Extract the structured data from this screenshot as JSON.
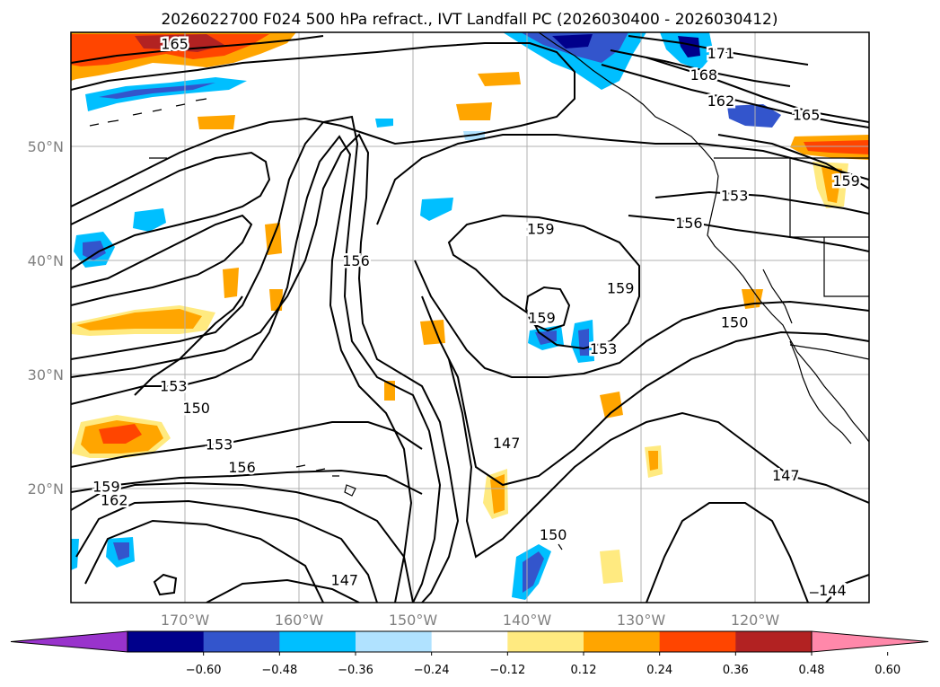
{
  "title": "2026022700 F024 500 hPa refract., IVT Landfall PC (2026030400 - 2026030412)",
  "map": {
    "lon_range": [
      -180,
      -110
    ],
    "lat_range": [
      10,
      60
    ],
    "lat_labels": [
      "50°N",
      "40°N",
      "30°N",
      "20°N"
    ],
    "lon_labels": [
      "170°W",
      "160°W",
      "150°W",
      "140°W",
      "130°W",
      "120°W"
    ],
    "gridlines": true
  },
  "contour_labels": [
    {
      "text": "165",
      "lon": -170.9,
      "lat": 59.0
    },
    {
      "text": "171",
      "lon": -123.0,
      "lat": 58.2
    },
    {
      "text": "168",
      "lon": -124.5,
      "lat": 56.3
    },
    {
      "text": "162",
      "lon": -123.0,
      "lat": 54.0
    },
    {
      "text": "165",
      "lon": -115.5,
      "lat": 52.8
    },
    {
      "text": "159",
      "lon": -112.0,
      "lat": 47.0
    },
    {
      "text": "153",
      "lon": -121.8,
      "lat": 45.7
    },
    {
      "text": "156",
      "lon": -125.8,
      "lat": 43.3
    },
    {
      "text": "159",
      "lon": -138.8,
      "lat": 42.8
    },
    {
      "text": "156",
      "lon": -155.0,
      "lat": 40.0
    },
    {
      "text": "159",
      "lon": -131.8,
      "lat": 37.6
    },
    {
      "text": "159",
      "lon": -138.7,
      "lat": 35.0
    },
    {
      "text": "153",
      "lon": -133.3,
      "lat": 32.3
    },
    {
      "text": "150",
      "lon": -121.8,
      "lat": 34.6
    },
    {
      "text": "153",
      "lon": -171.0,
      "lat": 29.0
    },
    {
      "text": "150",
      "lon": -169.0,
      "lat": 27.1
    },
    {
      "text": "147",
      "lon": -141.8,
      "lat": 24.0
    },
    {
      "text": "153",
      "lon": -167.0,
      "lat": 23.9
    },
    {
      "text": "156",
      "lon": -165.0,
      "lat": 21.9
    },
    {
      "text": "159",
      "lon": -176.9,
      "lat": 20.2
    },
    {
      "text": "162",
      "lon": -176.2,
      "lat": 19.0
    },
    {
      "text": "150",
      "lon": -137.7,
      "lat": 16.0
    },
    {
      "text": "147",
      "lon": -117.3,
      "lat": 21.2
    },
    {
      "text": "147",
      "lon": -156.0,
      "lat": 12.0
    },
    {
      "text": "144",
      "lon": -113.2,
      "lat": 11.1
    }
  ],
  "colorbar": {
    "colors": [
      "#9933cc",
      "#00008b",
      "#3355cc",
      "#00bfff",
      "#b0e2ff",
      "#ffffff",
      "#ffea80",
      "#ffa500",
      "#ff4500",
      "#b22222",
      "#ff88aa"
    ],
    "tick_values": [
      -0.6,
      -0.48,
      -0.36,
      -0.24,
      -0.12,
      0.12,
      0.24,
      0.36,
      0.48,
      0.6
    ],
    "tick_labels": [
      "−0.60",
      "−0.48",
      "−0.36",
      "−0.24",
      "−0.12",
      "0.12",
      "0.24",
      "0.36",
      "0.48",
      "0.60"
    ],
    "extend": "both"
  }
}
